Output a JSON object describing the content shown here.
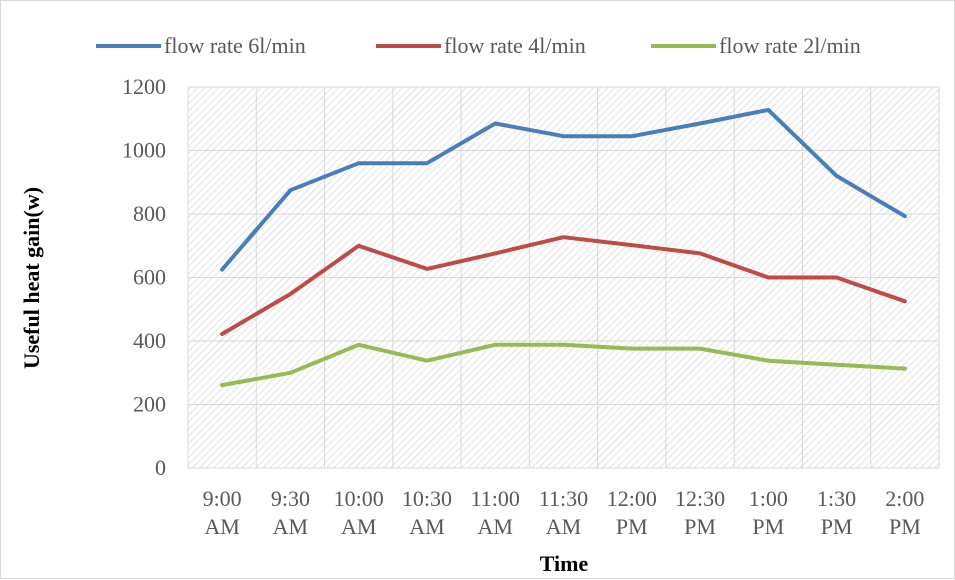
{
  "chart_data": {
    "type": "line",
    "title": "",
    "xlabel": "Time",
    "ylabel": "Useful heat gain(w)",
    "ylim": [
      0,
      1200
    ],
    "yticks": [
      "0",
      "200",
      "400",
      "600",
      "800",
      "1000",
      "1200"
    ],
    "categories": [
      [
        "9:00",
        "AM"
      ],
      [
        "9:30",
        "AM"
      ],
      [
        "10:00",
        "AM"
      ],
      [
        "10:30",
        "AM"
      ],
      [
        "11:00",
        "AM"
      ],
      [
        "11:30",
        "AM"
      ],
      [
        "12:00",
        "PM"
      ],
      [
        "12:30",
        "PM"
      ],
      [
        "1:00",
        "PM"
      ],
      [
        "1:30",
        "PM"
      ],
      [
        "2:00",
        "PM"
      ]
    ],
    "grid": true,
    "legend_position": "top",
    "series": [
      {
        "name": "flow rate 6l/min",
        "color": "#4a7ebb",
        "values": [
          625,
          875,
          960,
          960,
          1085,
          1045,
          1045,
          1085,
          1128,
          920,
          793
        ]
      },
      {
        "name": "flow rate 4l/min",
        "color": "#be4b48",
        "values": [
          422,
          548,
          700,
          627,
          676,
          727,
          702,
          676,
          600,
          600,
          525
        ]
      },
      {
        "name": "flow rate 2l/min",
        "color": "#98b954",
        "values": [
          261,
          300,
          388,
          338,
          388,
          388,
          376,
          376,
          338,
          325,
          313
        ]
      }
    ]
  }
}
